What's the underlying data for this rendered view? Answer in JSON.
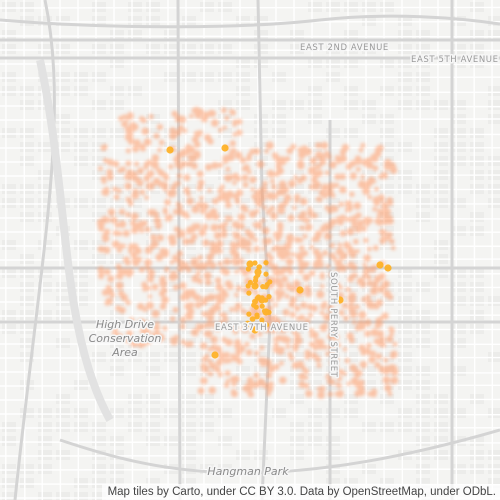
{
  "map": {
    "roads": {
      "east_2nd_avenue": "EAST 2ND AVENUE",
      "east_5th_avenue": "EAST 5TH AVENUE",
      "east_37th_avenue": "EAST 37TH AVENUE",
      "south_perry_street": "SOUTH PERRY STREET"
    },
    "parks": {
      "high_drive_line1": "High Drive",
      "high_drive_line2": "Conservation",
      "high_drive_line3": "Area",
      "hangman_park": "Hangman Park"
    },
    "attribution": "Map tiles by Carto, under CC BY 3.0. Data by OpenStreetMap, under ODbL.",
    "colors": {
      "background": "#f4f4f2",
      "block": "#ececea",
      "street": "#ffffff",
      "highway": "#d4d4d4",
      "density_dot": "#ff9a66",
      "hotspot": "#ffb01f"
    }
  }
}
